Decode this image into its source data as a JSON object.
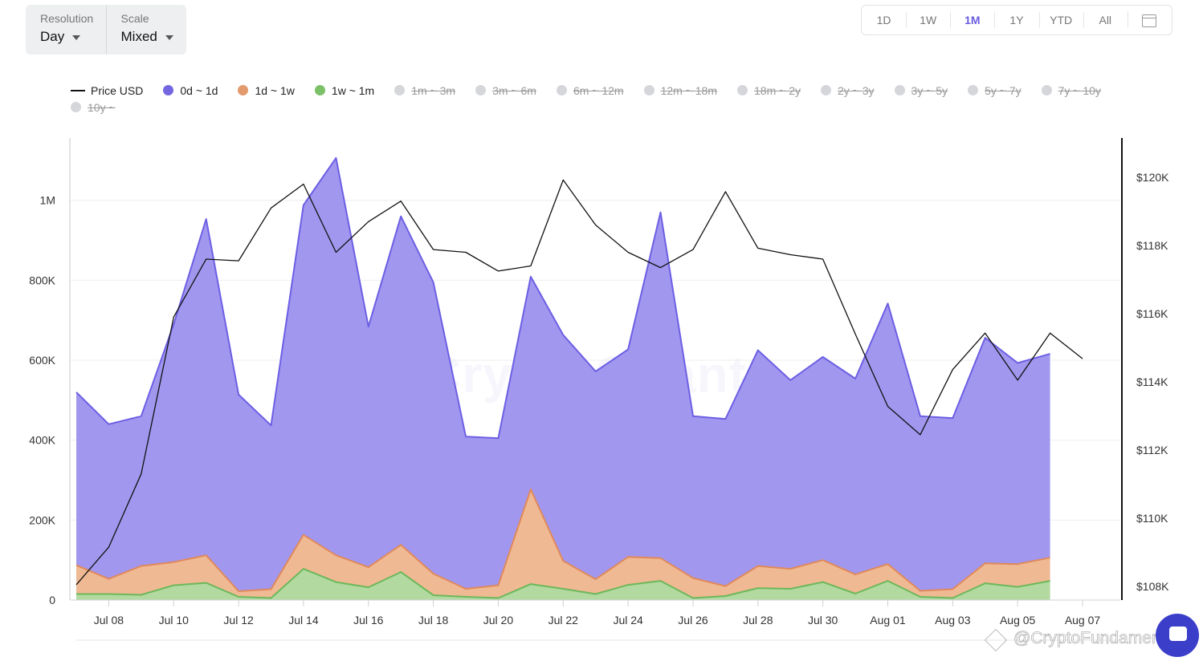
{
  "controls": {
    "resolution_label": "Resolution",
    "resolution_value": "Day",
    "scale_label": "Scale",
    "scale_value": "Mixed"
  },
  "ranges": [
    {
      "label": "1D",
      "active": false
    },
    {
      "label": "1W",
      "active": false
    },
    {
      "label": "1M",
      "active": true
    },
    {
      "label": "1Y",
      "active": false
    },
    {
      "label": "YTD",
      "active": false
    },
    {
      "label": "All",
      "active": false
    }
  ],
  "legend": [
    {
      "label": "Price USD",
      "kind": "line",
      "color": "#111111",
      "enabled": true
    },
    {
      "label": "0d ~ 1d",
      "kind": "dot",
      "color": "#7466e0",
      "enabled": true
    },
    {
      "label": "1d ~ 1w",
      "kind": "dot",
      "color": "#e39a6c",
      "enabled": true
    },
    {
      "label": "1w ~ 1m",
      "kind": "dot",
      "color": "#7cc068",
      "enabled": true
    },
    {
      "label": "1m ~ 3m",
      "kind": "dot",
      "color": "#d5d6da",
      "enabled": false
    },
    {
      "label": "3m ~ 6m",
      "kind": "dot",
      "color": "#d5d6da",
      "enabled": false
    },
    {
      "label": "6m ~ 12m",
      "kind": "dot",
      "color": "#d5d6da",
      "enabled": false
    },
    {
      "label": "12m ~ 18m",
      "kind": "dot",
      "color": "#d5d6da",
      "enabled": false
    },
    {
      "label": "18m ~ 2y",
      "kind": "dot",
      "color": "#d5d6da",
      "enabled": false
    },
    {
      "label": "2y ~ 3y",
      "kind": "dot",
      "color": "#d5d6da",
      "enabled": false
    },
    {
      "label": "3y ~ 5y",
      "kind": "dot",
      "color": "#d5d6da",
      "enabled": false
    },
    {
      "label": "5y ~ 7y",
      "kind": "dot",
      "color": "#d5d6da",
      "enabled": false
    },
    {
      "label": "7y ~ 10y",
      "kind": "dot",
      "color": "#d5d6da",
      "enabled": false
    },
    {
      "label": "10y ~",
      "kind": "dot",
      "color": "#d5d6da",
      "enabled": false
    }
  ],
  "watermark": "CryptoQuant",
  "credit": "@CryptoFundamenta",
  "chart_data": {
    "type": "area",
    "stacked": true,
    "grid": true,
    "legend_position": "top",
    "x": [
      "Jul 07",
      "Jul 08",
      "Jul 09",
      "Jul 10",
      "Jul 11",
      "Jul 12",
      "Jul 13",
      "Jul 14",
      "Jul 15",
      "Jul 16",
      "Jul 17",
      "Jul 18",
      "Jul 19",
      "Jul 20",
      "Jul 21",
      "Jul 22",
      "Jul 23",
      "Jul 24",
      "Jul 25",
      "Jul 26",
      "Jul 27",
      "Jul 28",
      "Jul 29",
      "Jul 30",
      "Jul 31",
      "Aug 01",
      "Aug 02",
      "Aug 03",
      "Aug 04",
      "Aug 05",
      "Aug 06",
      "Aug 07"
    ],
    "x_tick_labels": [
      "Jul 08",
      "Jul 10",
      "Jul 12",
      "Jul 14",
      "Jul 16",
      "Jul 18",
      "Jul 20",
      "Jul 22",
      "Jul 24",
      "Jul 26",
      "Jul 28",
      "Jul 30",
      "Aug 01",
      "Aug 03",
      "Aug 05",
      "Aug 07"
    ],
    "y_left": {
      "ticks": [
        0,
        200000,
        400000,
        600000,
        800000,
        1000000
      ],
      "tick_labels": [
        "0",
        "200K",
        "400K",
        "600K",
        "800K",
        "1M"
      ],
      "range": [
        0,
        1160000
      ]
    },
    "y_right": {
      "ticks": [
        108000,
        110000,
        112000,
        114000,
        116000,
        118000,
        120000
      ],
      "tick_labels": [
        "$108K",
        "$110K",
        "$112K",
        "$114K",
        "$116K",
        "$118K",
        "$120K"
      ],
      "range": [
        107600,
        121200
      ]
    },
    "series": [
      {
        "name": "1w ~ 1m",
        "axis": "left",
        "values": [
          15000,
          15000,
          13000,
          37000,
          43000,
          8000,
          5000,
          78000,
          45000,
          32000,
          70000,
          12000,
          8000,
          5000,
          40000,
          28000,
          15000,
          38000,
          48000,
          5000,
          10000,
          30000,
          28000,
          45000,
          16000,
          48000,
          8000,
          5000,
          42000,
          33000,
          48000,
          null
        ]
      },
      {
        "name": "1d ~ 1w",
        "axis": "left",
        "values": [
          72000,
          38000,
          72000,
          58000,
          69000,
          14000,
          22000,
          85000,
          67000,
          50000,
          68000,
          54000,
          20000,
          32000,
          237000,
          70000,
          37000,
          70000,
          57000,
          50000,
          25000,
          55000,
          50000,
          55000,
          48000,
          42000,
          15000,
          22000,
          50000,
          57000,
          58000,
          null
        ]
      },
      {
        "name": "0d ~ 1d",
        "axis": "left",
        "values": [
          433000,
          387000,
          375000,
          595000,
          841000,
          492000,
          410000,
          825000,
          994000,
          602000,
          822000,
          729000,
          381000,
          368000,
          532000,
          565000,
          520000,
          519000,
          865000,
          405000,
          418000,
          540000,
          472000,
          508000,
          490000,
          652000,
          437000,
          428000,
          564000,
          503000,
          510000,
          null
        ]
      },
      {
        "name": "Price USD",
        "axis": "right",
        "values": [
          108050,
          109150,
          111300,
          115900,
          117600,
          117550,
          119100,
          119800,
          117800,
          118700,
          119300,
          117880,
          117800,
          117250,
          117400,
          119920,
          118600,
          117800,
          117350,
          117880,
          119580,
          117920,
          117730,
          117600,
          115400,
          113280,
          112450,
          114360,
          115430,
          114050,
          115430,
          114680
        ]
      }
    ]
  }
}
